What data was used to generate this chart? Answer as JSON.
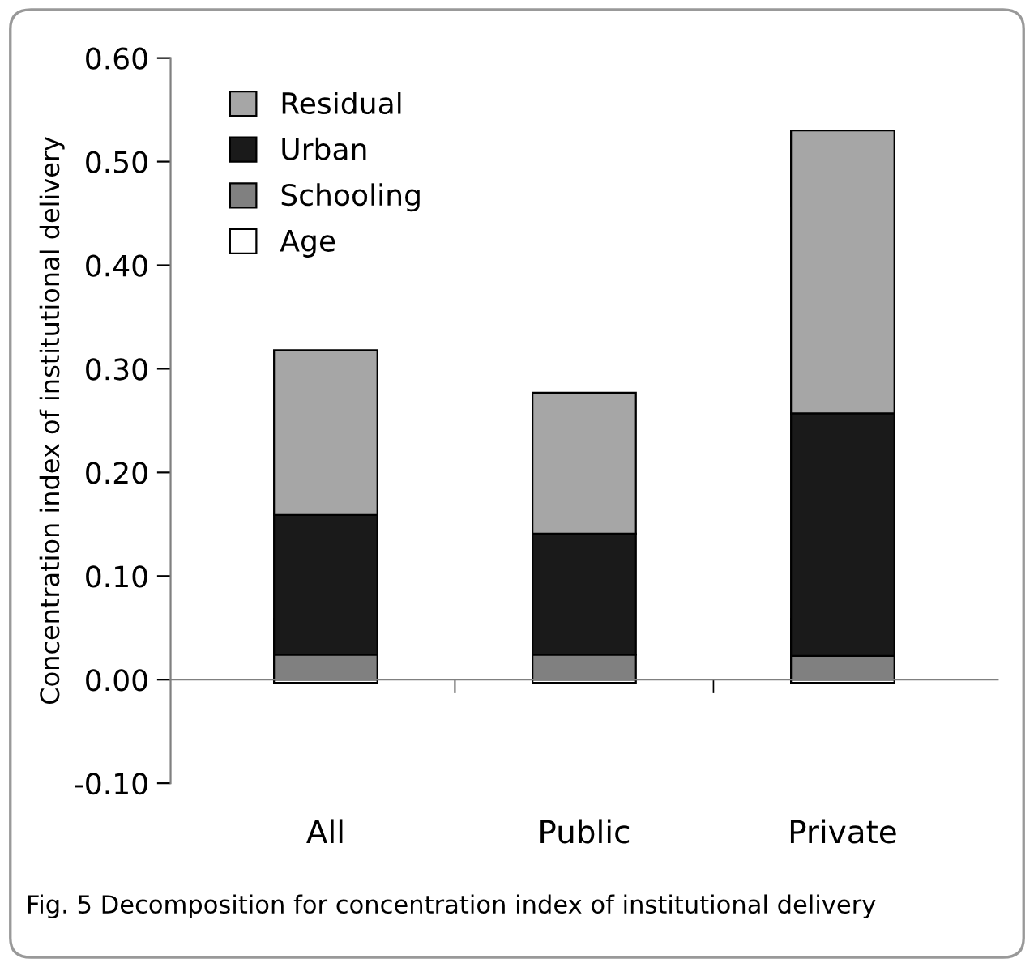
{
  "chart_data": {
    "type": "bar",
    "stacked": true,
    "ylabel": "Concentration index of institutional delivery",
    "categories": [
      "All",
      "Public",
      "Private"
    ],
    "series": [
      {
        "name": "Age",
        "color": "#ffffff",
        "values": [
          -0.003,
          -0.003,
          -0.003
        ]
      },
      {
        "name": "Schooling",
        "color": "#808080",
        "values": [
          0.024,
          0.024,
          0.023
        ]
      },
      {
        "name": "Urban",
        "color": "#1a1a1a",
        "values": [
          0.135,
          0.117,
          0.234
        ]
      },
      {
        "name": "Residual",
        "color": "#a6a6a6",
        "values": [
          0.159,
          0.136,
          0.273
        ]
      }
    ],
    "ylim": [
      -0.1,
      0.6
    ],
    "yticks": [
      {
        "value": -0.1,
        "label": "-0.10"
      },
      {
        "value": 0,
        "label": "0.00"
      },
      {
        "value": 0.1,
        "label": "0.10"
      },
      {
        "value": 0.2,
        "label": "0.20"
      },
      {
        "value": 0.3,
        "label": "0.30"
      },
      {
        "value": 0.4,
        "label": "0.40"
      },
      {
        "value": 0.5,
        "label": "0.50"
      },
      {
        "value": 0.6,
        "label": "0.60"
      }
    ],
    "legend": "top left",
    "annotations": [
      "Fig. 5 Decomposition for concentration index of institutional delivery"
    ]
  }
}
